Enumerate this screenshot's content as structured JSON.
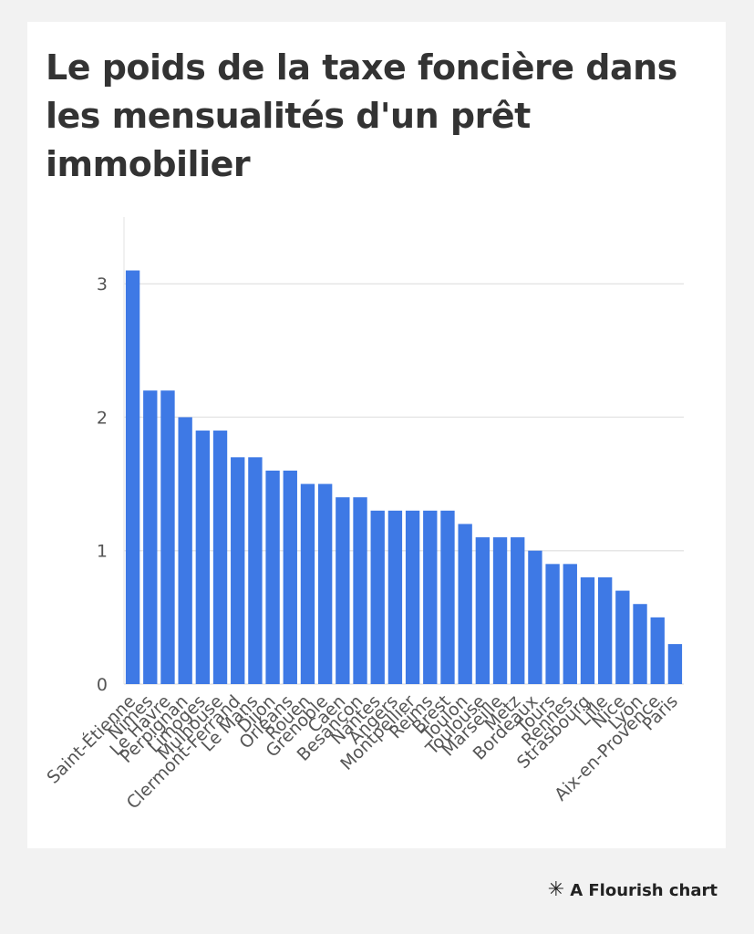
{
  "footer": {
    "credit": "A Flourish chart",
    "icon": "asterisk-icon"
  },
  "chart_data": {
    "type": "bar",
    "title": "Le poids de la taxe foncière dans les mensualités d'un prêt immobilier",
    "xlabel": "",
    "ylabel": "",
    "ylim": [
      0,
      3.5
    ],
    "yticks": [
      0,
      1,
      2,
      3
    ],
    "grid": true,
    "color": "#3e79e5",
    "categories": [
      "Saint-Étienne",
      "Nîmes",
      "Le Havre",
      "Perpignan",
      "Limoges",
      "Mulhouse",
      "Clermont-Ferrand",
      "Le Mans",
      "Dijon",
      "Orléans",
      "Rouen",
      "Grenoble",
      "Caen",
      "Besançon",
      "Nantes",
      "Angers",
      "Montpellier",
      "Reims",
      "Brest",
      "Toulon",
      "Toulouse",
      "Marseille",
      "Metz",
      "Bordeaux",
      "Tours",
      "Rennes",
      "Strasbourg",
      "Lille",
      "Nice",
      "Lyon",
      "Aix-en-Provence",
      "Paris"
    ],
    "values": [
      3.1,
      2.2,
      2.2,
      2.0,
      1.9,
      1.9,
      1.7,
      1.7,
      1.6,
      1.6,
      1.5,
      1.5,
      1.4,
      1.4,
      1.3,
      1.3,
      1.3,
      1.3,
      1.3,
      1.2,
      1.1,
      1.1,
      1.1,
      1.0,
      0.9,
      0.9,
      0.8,
      0.8,
      0.7,
      0.6,
      0.5,
      0.3
    ]
  }
}
